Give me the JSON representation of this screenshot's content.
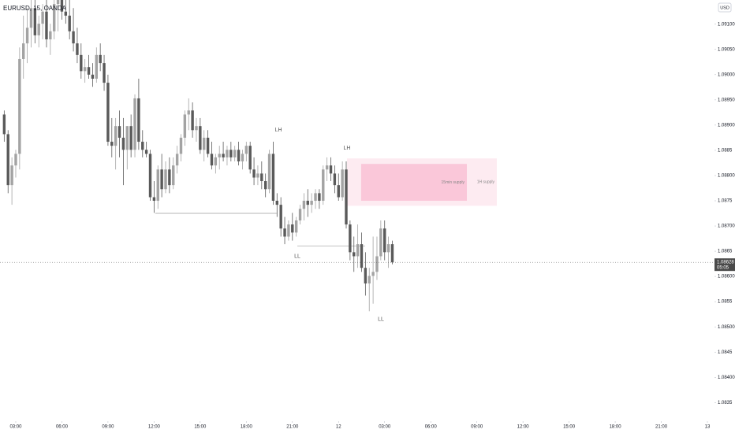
{
  "chart_data": {
    "type": "candlestick",
    "title": "EURUSD, 15, OANDA",
    "currency": "USD",
    "up_color": "#a3a3a3",
    "down_color": "#5a5a5a",
    "x": [
      2.25,
      2.5,
      2.75,
      3,
      3.25,
      3.5,
      3.75,
      4,
      4.25,
      4.5,
      4.75,
      5,
      5.25,
      5.5,
      5.75,
      6,
      6.25,
      6.5,
      6.75,
      7,
      7.25,
      7.5,
      7.75,
      8,
      8.25,
      8.5,
      8.75,
      9,
      9.25,
      9.5,
      9.75,
      10,
      10.25,
      10.5,
      10.75,
      11,
      11.25,
      11.5,
      11.75,
      12,
      12.25,
      12.5,
      12.75,
      13,
      13.25,
      13.5,
      13.75,
      14,
      14.25,
      14.5,
      14.75,
      15,
      15.25,
      15.5,
      15.75,
      16,
      16.25,
      16.5,
      16.75,
      17,
      17.25,
      17.5,
      17.75,
      18,
      18.25,
      18.5,
      18.75,
      19,
      19.25,
      19.5,
      19.75,
      20,
      20.25,
      20.5,
      20.75,
      21,
      21.25,
      21.5,
      21.75,
      22,
      22.25,
      22.5,
      22.75,
      23,
      23.25,
      23.5,
      23.75,
      24,
      24.25,
      24.5,
      24.75,
      25,
      25.25,
      25.5,
      25.75,
      26,
      26.25,
      26.5,
      26.75,
      27,
      27.25,
      27.5
    ],
    "open": [
      1.08921,
      1.08882,
      1.08781,
      1.0882,
      1.08843,
      1.09031,
      1.09062,
      1.09093,
      1.09132,
      1.09078,
      1.09101,
      1.09125,
      1.0907,
      1.09086,
      1.0914,
      1.09148,
      1.09125,
      1.09117,
      1.09086,
      1.09062,
      1.09039,
      1.09007,
      1.09015,
      1.09,
      1.08992,
      1.09039,
      1.09023,
      1.08984,
      1.08867,
      1.08859,
      1.08898,
      1.08875,
      1.08851,
      1.08898,
      1.08851,
      1.08953,
      1.08867,
      1.08851,
      1.08843,
      1.08757,
      1.0875,
      1.08812,
      1.08773,
      1.08812,
      1.08781,
      1.0882,
      1.08843,
      1.08875,
      1.08921,
      1.08929,
      1.0889,
      1.08898,
      1.08851,
      1.08875,
      1.08843,
      1.0882,
      1.08836,
      1.08843,
      1.08836,
      1.08851,
      1.08836,
      1.08851,
      1.08828,
      1.08843,
      1.08859,
      1.08812,
      1.08796,
      1.08804,
      1.08789,
      1.08773,
      1.08843,
      1.0875,
      1.08742,
      1.08695,
      1.08679,
      1.08703,
      1.08687,
      1.08711,
      1.08734,
      1.0875,
      1.08742,
      1.0875,
      1.08765,
      1.0875,
      1.08812,
      1.0882,
      1.08804,
      1.08781,
      1.08757,
      1.08812,
      1.08703,
      1.08648,
      1.0864,
      1.08664,
      1.08617,
      1.08586,
      1.08601,
      1.08609,
      1.0864,
      1.08695,
      1.08648,
      1.08664
    ],
    "high": [
      1.08929,
      1.0889,
      1.08836,
      1.08851,
      1.09054,
      1.09117,
      1.09132,
      1.09148,
      1.09148,
      1.09117,
      1.0914,
      1.09148,
      1.09101,
      1.09148,
      1.09148,
      1.09148,
      1.09148,
      1.09148,
      1.09132,
      1.09093,
      1.09062,
      1.09031,
      1.09039,
      1.09023,
      1.09054,
      1.09062,
      1.09039,
      1.09,
      1.08914,
      1.08914,
      1.08929,
      1.08914,
      1.08898,
      1.08921,
      1.08961,
      1.08992,
      1.0889,
      1.08867,
      1.08851,
      1.08789,
      1.0882,
      1.08843,
      1.08828,
      1.08836,
      1.08836,
      1.08859,
      1.08882,
      1.08929,
      1.08953,
      1.08945,
      1.08914,
      1.08914,
      1.0889,
      1.0889,
      1.08867,
      1.08843,
      1.08859,
      1.08867,
      1.08859,
      1.08867,
      1.08859,
      1.08867,
      1.08851,
      1.08867,
      1.08867,
      1.08836,
      1.0882,
      1.08828,
      1.08804,
      1.08851,
      1.08867,
      1.08765,
      1.08757,
      1.08718,
      1.08711,
      1.08726,
      1.08718,
      1.08742,
      1.08765,
      1.08773,
      1.08765,
      1.08773,
      1.08773,
      1.0882,
      1.08836,
      1.08836,
      1.0882,
      1.08804,
      1.08828,
      1.08828,
      1.08711,
      1.08679,
      1.08703,
      1.08687,
      1.08648,
      1.08617,
      1.08679,
      1.08679,
      1.08711,
      1.08711,
      1.08679,
      1.08671
    ],
    "low": [
      1.08867,
      1.08765,
      1.08742,
      1.08796,
      1.08812,
      1.08992,
      1.09023,
      1.09054,
      1.09062,
      1.09054,
      1.0907,
      1.09054,
      1.09039,
      1.0907,
      1.09086,
      1.09109,
      1.09101,
      1.0907,
      1.09046,
      1.09023,
      1.08992,
      1.08984,
      1.08992,
      1.08976,
      1.08984,
      1.09007,
      1.08968,
      1.08859,
      1.08836,
      1.08812,
      1.08836,
      1.08781,
      1.08812,
      1.08836,
      1.08836,
      1.08851,
      1.08836,
      1.08836,
      1.0875,
      1.08726,
      1.08734,
      1.08757,
      1.08765,
      1.08765,
      1.08773,
      1.08804,
      1.08828,
      1.08859,
      1.0889,
      1.08875,
      1.08867,
      1.08843,
      1.08828,
      1.08836,
      1.08812,
      1.08804,
      1.08812,
      1.08828,
      1.0882,
      1.08828,
      1.08828,
      1.0882,
      1.08812,
      1.08828,
      1.08804,
      1.08781,
      1.08781,
      1.08773,
      1.08757,
      1.08765,
      1.08742,
      1.08718,
      1.08679,
      1.08664,
      1.08671,
      1.08671,
      1.08679,
      1.08703,
      1.08711,
      1.08718,
      1.08726,
      1.08734,
      1.08734,
      1.08742,
      1.08789,
      1.08789,
      1.08765,
      1.0875,
      1.0875,
      1.08695,
      1.08632,
      1.08609,
      1.08617,
      1.08609,
      1.08562,
      1.08531,
      1.08546,
      1.08593,
      1.08632,
      1.08632,
      1.08617,
      1.08624
    ],
    "close": [
      1.08882,
      1.08781,
      1.0882,
      1.08843,
      1.09031,
      1.09062,
      1.09093,
      1.09132,
      1.09078,
      1.09101,
      1.09125,
      1.0907,
      1.09086,
      1.0914,
      1.09148,
      1.09125,
      1.09117,
      1.09086,
      1.09062,
      1.09039,
      1.09007,
      1.09015,
      1.09,
      1.08992,
      1.09039,
      1.09023,
      1.08984,
      1.08867,
      1.08859,
      1.08898,
      1.08875,
      1.08851,
      1.08898,
      1.08851,
      1.08953,
      1.08867,
      1.08851,
      1.08843,
      1.08757,
      1.0875,
      1.08812,
      1.08773,
      1.08812,
      1.08781,
      1.0882,
      1.08843,
      1.08875,
      1.08921,
      1.08929,
      1.0889,
      1.08898,
      1.08851,
      1.08875,
      1.08843,
      1.0882,
      1.08836,
      1.08843,
      1.08836,
      1.08851,
      1.08836,
      1.08851,
      1.08828,
      1.08843,
      1.08859,
      1.08812,
      1.08796,
      1.08804,
      1.08789,
      1.08773,
      1.08843,
      1.0875,
      1.08742,
      1.08695,
      1.08679,
      1.08703,
      1.08687,
      1.08711,
      1.08734,
      1.0875,
      1.08742,
      1.0875,
      1.08765,
      1.0875,
      1.08812,
      1.0882,
      1.08804,
      1.08781,
      1.08757,
      1.08812,
      1.08703,
      1.08648,
      1.0864,
      1.08664,
      1.08617,
      1.08586,
      1.08601,
      1.08609,
      1.0864,
      1.08695,
      1.08648,
      1.08664,
      1.08628
    ],
    "last_price": 1.08628,
    "countdown": "05:05",
    "xlim": [
      1.975,
      48.41
    ],
    "ylim": [
      1.08313,
      1.09148
    ],
    "xticks": [
      {
        "value": 3,
        "label": "03:00"
      },
      {
        "value": 6,
        "label": "06:00"
      },
      {
        "value": 9,
        "label": "09:00"
      },
      {
        "value": 12,
        "label": "12:00"
      },
      {
        "value": 15,
        "label": "15:00"
      },
      {
        "value": 18,
        "label": "18:00"
      },
      {
        "value": 21,
        "label": "21:00"
      },
      {
        "value": 24,
        "label": "12"
      },
      {
        "value": 27,
        "label": "03:00"
      },
      {
        "value": 30,
        "label": "06:00"
      },
      {
        "value": 33,
        "label": "09:00"
      },
      {
        "value": 36,
        "label": "12:00"
      },
      {
        "value": 39,
        "label": "15:00"
      },
      {
        "value": 42,
        "label": "18:00"
      },
      {
        "value": 45,
        "label": "21:00"
      },
      {
        "value": 48,
        "label": "13"
      }
    ],
    "yticks": [
      {
        "value": 1.091,
        "label": "1.09100"
      },
      {
        "value": 1.0905,
        "label": "1.09050"
      },
      {
        "value": 1.09,
        "label": "1.09000"
      },
      {
        "value": 1.0895,
        "label": "1.08950"
      },
      {
        "value": 1.089,
        "label": "1.08900"
      },
      1.0885,
      {
        "value": 1.088,
        "label": "1.08800"
      },
      1.0875,
      {
        "value": 1.087,
        "label": "1.08700"
      },
      1.0865,
      {
        "value": 1.086,
        "label": "1.08600"
      },
      1.0855,
      {
        "value": 1.085,
        "label": "1.08500"
      },
      1.0845,
      {
        "value": 1.084,
        "label": "1.08400"
      },
      1.0835
    ],
    "zones": [
      {
        "label": "1H supply",
        "x": [
          24.55,
          34.3
        ],
        "y": [
          1.0874,
          1.08834
        ],
        "color": "#fce4ec"
      },
      {
        "label": "15min supply",
        "x": [
          25.47,
          32.35
        ],
        "y": [
          1.0875,
          1.08823
        ],
        "color": "#f8bbd0"
      }
    ],
    "levels": [
      {
        "x": [
          12.08,
          19.98
        ],
        "y": 1.08725
      },
      {
        "x": [
          21.32,
          25.73
        ],
        "y": 1.0866
      }
    ],
    "annotations": [
      {
        "text": "LH",
        "x": 20.09,
        "y": 1.0889
      },
      {
        "text": "LH",
        "x": 24.55,
        "y": 1.08854
      },
      {
        "text": "LL",
        "x": 21.32,
        "y": 1.0864
      },
      {
        "text": "LL",
        "x": 26.76,
        "y": 1.08515
      }
    ]
  }
}
